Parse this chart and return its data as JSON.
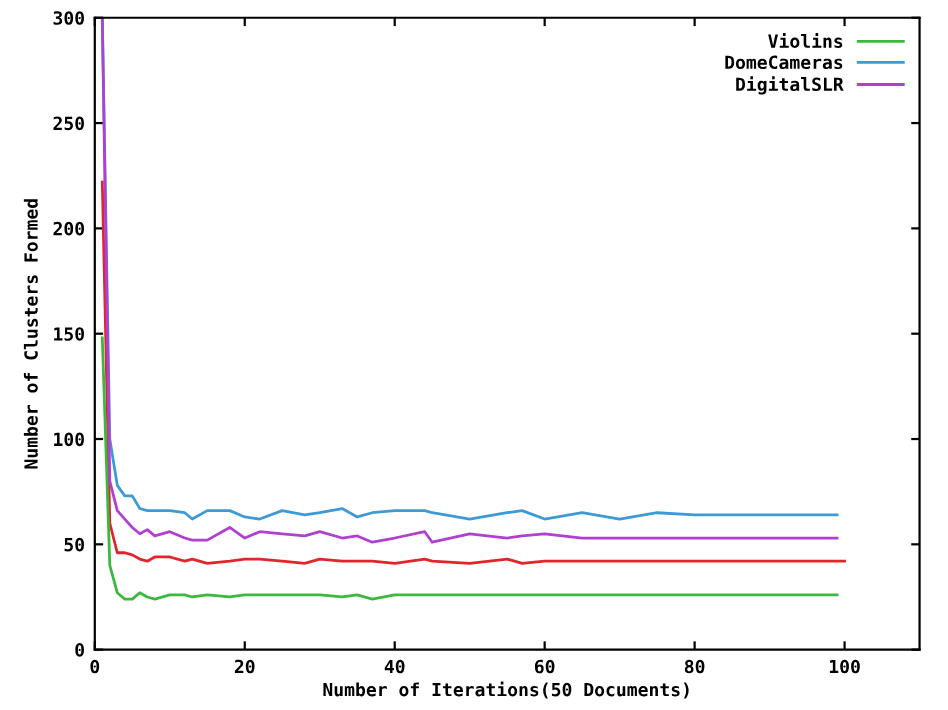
{
  "chart_data": {
    "type": "line",
    "xlabel": "Number of Iterations(50 Documents)",
    "ylabel": "Number of Clusters Formed",
    "x": [
      1,
      2,
      3,
      4,
      5,
      6,
      7,
      8,
      10,
      12,
      13,
      15,
      18,
      20,
      22,
      25,
      28,
      30,
      33,
      35,
      37,
      40,
      44,
      45,
      50,
      55,
      57,
      60,
      65,
      70,
      75,
      80,
      85,
      90,
      95,
      99
    ],
    "series": [
      {
        "color": "#e0262c",
        "x": [
          1,
          2,
          3,
          4,
          5,
          6,
          7,
          8,
          10,
          12,
          13,
          15,
          18,
          20,
          22,
          25,
          28,
          30,
          33,
          35,
          37,
          40,
          44,
          45,
          50,
          55,
          57,
          60,
          65,
          70,
          75,
          80,
          85,
          90,
          95,
          100
        ],
        "values": [
          222,
          60,
          46,
          46,
          45,
          43,
          42,
          44,
          44,
          42,
          43,
          41,
          42,
          43,
          43,
          42,
          41,
          43,
          42,
          42,
          42,
          41,
          43,
          42,
          41,
          43,
          41,
          42,
          42,
          42,
          42,
          42,
          42,
          42,
          42,
          42
        ]
      },
      {
        "name": "Violins",
        "color": "#3cb93c",
        "values": [
          148,
          40,
          27,
          24,
          24,
          27,
          25,
          24,
          26,
          26,
          25,
          26,
          25,
          26,
          26,
          26,
          26,
          26,
          25,
          26,
          24,
          26,
          26,
          26,
          26,
          26,
          26,
          26,
          26,
          26,
          26,
          26,
          26,
          26,
          26,
          26
        ]
      },
      {
        "name": "DomeCameras",
        "color": "#3d9ad6",
        "values": [
          300,
          100,
          78,
          73,
          73,
          67,
          66,
          66,
          66,
          65,
          62,
          66,
          66,
          63,
          62,
          66,
          64,
          65,
          67,
          63,
          65,
          66,
          66,
          65,
          62,
          65,
          66,
          62,
          65,
          62,
          65,
          64,
          64,
          64,
          64,
          64
        ]
      },
      {
        "name": "DigitalSLR",
        "color": "#b040d0",
        "values": [
          300,
          80,
          66,
          62,
          58,
          55,
          57,
          54,
          56,
          53,
          52,
          52,
          58,
          53,
          56,
          55,
          54,
          56,
          53,
          54,
          51,
          53,
          56,
          51,
          55,
          53,
          54,
          55,
          53,
          53,
          53,
          53,
          53,
          53,
          53,
          53
        ]
      }
    ],
    "xlim": [
      0,
      110
    ],
    "xticks": [
      0,
      20,
      40,
      60,
      80,
      100
    ],
    "ylim": [
      0,
      300
    ],
    "yticks": [
      0,
      50,
      100,
      150,
      200,
      250,
      300
    ],
    "legend": "top right",
    "grid": false
  }
}
